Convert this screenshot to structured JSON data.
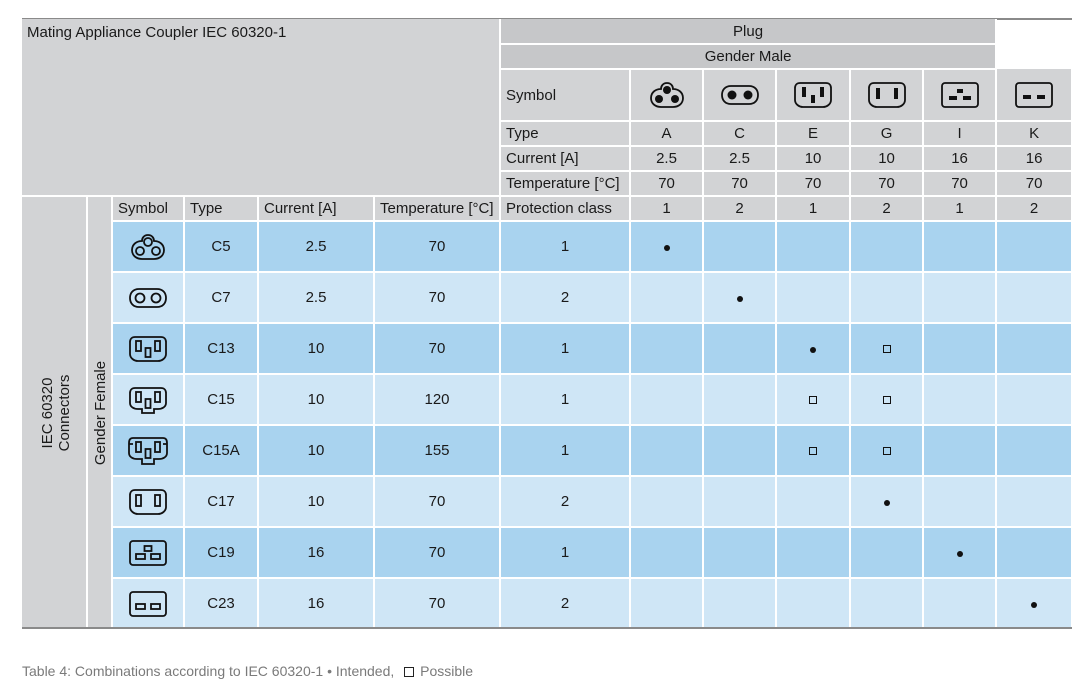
{
  "title": "Mating Appliance Coupler IEC 60320-1",
  "plug_header": "Plug",
  "gender_male": "Gender Male",
  "side_label_line1": "IEC 60320",
  "side_label_line2": "Connectors",
  "gender_female": "Gender Female",
  "plug_rows": {
    "symbol_label": "Symbol",
    "type_label": "Type",
    "current_label": "Current [A]",
    "temperature_label": "Temperature [°C]",
    "protection_label": "Protection class"
  },
  "plugs": [
    {
      "type": "A",
      "current": "2.5",
      "temperature": "70",
      "protection": "1",
      "icon": "plug-a-icon"
    },
    {
      "type": "C",
      "current": "2.5",
      "temperature": "70",
      "protection": "2",
      "icon": "plug-c-icon"
    },
    {
      "type": "E",
      "current": "10",
      "temperature": "70",
      "protection": "1",
      "icon": "plug-e-icon"
    },
    {
      "type": "G",
      "current": "10",
      "temperature": "70",
      "protection": "2",
      "icon": "plug-g-icon"
    },
    {
      "type": "I",
      "current": "16",
      "temperature": "70",
      "protection": "1",
      "icon": "plug-i-icon"
    },
    {
      "type": "K",
      "current": "16",
      "temperature": "70",
      "protection": "2",
      "icon": "plug-k-icon"
    }
  ],
  "connector_header": {
    "symbol": "Symbol",
    "type": "Type",
    "current": "Current [A]",
    "temperature": "Temperature [°C]"
  },
  "connectors": [
    {
      "type": "C5",
      "current": "2.5",
      "temperature": "70",
      "protection": "1",
      "icon": "connector-c5-icon",
      "marks": [
        "dot",
        "",
        "",
        "",
        "",
        ""
      ]
    },
    {
      "type": "C7",
      "current": "2.5",
      "temperature": "70",
      "protection": "2",
      "icon": "connector-c7-icon",
      "marks": [
        "",
        "dot",
        "",
        "",
        "",
        ""
      ]
    },
    {
      "type": "C13",
      "current": "10",
      "temperature": "70",
      "protection": "1",
      "icon": "connector-c13-icon",
      "marks": [
        "",
        "",
        "dot",
        "square",
        "",
        ""
      ]
    },
    {
      "type": "C15",
      "current": "10",
      "temperature": "120",
      "protection": "1",
      "icon": "connector-c15-icon",
      "marks": [
        "",
        "",
        "square",
        "square",
        "",
        ""
      ]
    },
    {
      "type": "C15A",
      "current": "10",
      "temperature": "155",
      "protection": "1",
      "icon": "connector-c15a-icon",
      "marks": [
        "",
        "",
        "square",
        "square",
        "",
        ""
      ]
    },
    {
      "type": "C17",
      "current": "10",
      "temperature": "70",
      "protection": "2",
      "icon": "connector-c17-icon",
      "marks": [
        "",
        "",
        "",
        "dot",
        "",
        ""
      ]
    },
    {
      "type": "C19",
      "current": "16",
      "temperature": "70",
      "protection": "1",
      "icon": "connector-c19-icon",
      "marks": [
        "",
        "",
        "",
        "",
        "dot",
        ""
      ]
    },
    {
      "type": "C23",
      "current": "16",
      "temperature": "70",
      "protection": "2",
      "icon": "connector-c23-icon",
      "marks": [
        "",
        "",
        "",
        "",
        "",
        "dot"
      ]
    }
  ],
  "caption": {
    "prefix": "Table 4: Combinations according to IEC 60320-1",
    "bullet": "•",
    "intended": "Intended,",
    "possible": "Possible"
  },
  "colors": {
    "header_grey": "#d2d3d5",
    "row_blue_dark": "#a9d3ef",
    "row_blue_light": "#cfe6f6"
  }
}
